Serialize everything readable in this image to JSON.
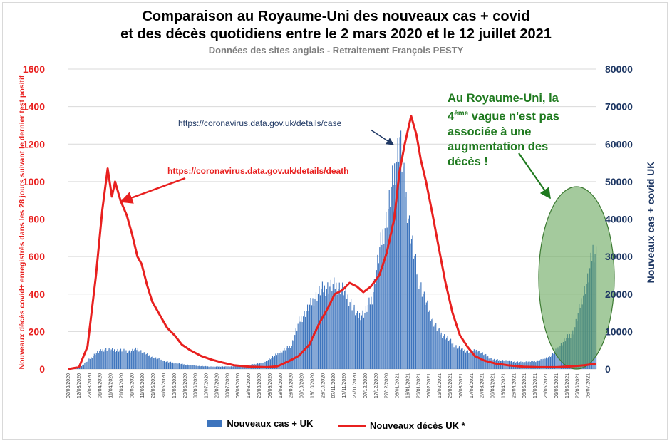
{
  "chart_data": {
    "type": "bar+line",
    "title_line1": "Comparaison au Royaume-Uni des nouveaux cas + covid",
    "title_line2": "et des décès quotidiens entre le 2 mars 2020 et le 12 juillet 2021",
    "subtitle": "Données des sites anglais - Retraitement François PESTY",
    "y_left_label": "Nouveaux décès covid+ enregistrés dans les 28 jours suivant le dernier test positif",
    "y_right_label": "Nouveaux cas + covid UK",
    "y_left_ticks": [
      "0",
      "200",
      "400",
      "600",
      "800",
      "1000",
      "1200",
      "1400",
      "1600"
    ],
    "y_right_ticks": [
      "0",
      "10000",
      "20000",
      "30000",
      "40000",
      "50000",
      "60000",
      "70000",
      "80000"
    ],
    "y_left_range": [
      0,
      1600
    ],
    "y_right_range": [
      0,
      80000
    ],
    "x_range": [
      "2020-03-02",
      "2021-07-12"
    ],
    "x_tick_labels": [
      "02/03/2020",
      "12/03/2020",
      "22/03/2020",
      "01/04/2020",
      "11/04/2020",
      "21/04/2020",
      "01/05/2020",
      "11/05/2020",
      "21/05/2020",
      "31/05/2020",
      "10/06/2020",
      "20/06/2020",
      "30/06/2020",
      "10/07/2020",
      "20/07/2020",
      "30/07/2020",
      "09/08/2020",
      "19/08/2020",
      "29/08/2020",
      "08/09/2020",
      "18/09/2020",
      "28/09/2020",
      "08/10/2020",
      "18/10/2020",
      "28/10/2020",
      "07/11/2020",
      "17/11/2020",
      "27/11/2020",
      "07/12/2020",
      "17/12/2020",
      "27/12/2020",
      "06/01/2021",
      "16/01/2021",
      "26/01/2021",
      "05/02/2021",
      "15/02/2021",
      "25/02/2021",
      "07/03/2021",
      "17/03/2021",
      "27/03/2021",
      "06/04/2021",
      "16/04/2021",
      "26/04/2021",
      "06/05/2021",
      "16/05/2021",
      "26/05/2021",
      "05/06/2021",
      "15/06/2021",
      "25/06/2021",
      "05/07/2021"
    ],
    "series": [
      {
        "name": "Nouveaux cas + UK",
        "kind": "bar",
        "axis": "right",
        "color": "#3d74bd",
        "points": [
          [
            "2020-03-02",
            40
          ],
          [
            "2020-03-12",
            300
          ],
          [
            "2020-03-20",
            2500
          ],
          [
            "2020-03-28",
            4800
          ],
          [
            "2020-04-05",
            5800
          ],
          [
            "2020-04-12",
            5600
          ],
          [
            "2020-04-20",
            5500
          ],
          [
            "2020-04-28",
            5200
          ],
          [
            "2020-05-06",
            5900
          ],
          [
            "2020-05-12",
            4600
          ],
          [
            "2020-05-20",
            3500
          ],
          [
            "2020-06-01",
            2200
          ],
          [
            "2020-06-15",
            1500
          ],
          [
            "2020-07-01",
            900
          ],
          [
            "2020-07-15",
            700
          ],
          [
            "2020-08-01",
            750
          ],
          [
            "2020-08-15",
            1000
          ],
          [
            "2020-09-01",
            1800
          ],
          [
            "2020-09-10",
            3500
          ],
          [
            "2020-09-20",
            5500
          ],
          [
            "2020-09-28",
            7000
          ],
          [
            "2020-10-05",
            14000
          ],
          [
            "2020-10-12",
            17000
          ],
          [
            "2020-10-18",
            20000
          ],
          [
            "2020-10-25",
            23000
          ],
          [
            "2020-11-01",
            24000
          ],
          [
            "2020-11-08",
            24500
          ],
          [
            "2020-11-15",
            23500
          ],
          [
            "2020-11-22",
            20000
          ],
          [
            "2020-11-29",
            15500
          ],
          [
            "2020-12-06",
            16500
          ],
          [
            "2020-12-13",
            21000
          ],
          [
            "2020-12-20",
            35000
          ],
          [
            "2020-12-27",
            45000
          ],
          [
            "2021-01-03",
            58000
          ],
          [
            "2021-01-08",
            68000
          ],
          [
            "2021-01-12",
            55000
          ],
          [
            "2021-01-18",
            40000
          ],
          [
            "2021-01-25",
            27000
          ],
          [
            "2021-02-01",
            20000
          ],
          [
            "2021-02-08",
            14000
          ],
          [
            "2021-02-15",
            10500
          ],
          [
            "2021-02-22",
            9000
          ],
          [
            "2021-03-01",
            6800
          ],
          [
            "2021-03-08",
            5700
          ],
          [
            "2021-03-15",
            5000
          ],
          [
            "2021-03-22",
            5500
          ],
          [
            "2021-03-29",
            4200
          ],
          [
            "2021-04-05",
            2800
          ],
          [
            "2021-04-12",
            2600
          ],
          [
            "2021-04-19",
            2400
          ],
          [
            "2021-04-26",
            2100
          ],
          [
            "2021-05-03",
            2000
          ],
          [
            "2021-05-10",
            2200
          ],
          [
            "2021-05-17",
            2300
          ],
          [
            "2021-05-24",
            3000
          ],
          [
            "2021-05-31",
            4000
          ],
          [
            "2021-06-07",
            6500
          ],
          [
            "2021-06-14",
            9000
          ],
          [
            "2021-06-21",
            11000
          ],
          [
            "2021-06-28",
            20000
          ],
          [
            "2021-07-05",
            27000
          ],
          [
            "2021-07-09",
            35000
          ],
          [
            "2021-07-12",
            34000
          ]
        ]
      },
      {
        "name": "Nouveaux décès UK *",
        "kind": "line",
        "axis": "left",
        "color": "#e8201f",
        "points": [
          [
            "2020-03-02",
            0
          ],
          [
            "2020-03-12",
            10
          ],
          [
            "2020-03-20",
            120
          ],
          [
            "2020-03-28",
            500
          ],
          [
            "2020-04-03",
            850
          ],
          [
            "2020-04-08",
            1070
          ],
          [
            "2020-04-12",
            920
          ],
          [
            "2020-04-15",
            1000
          ],
          [
            "2020-04-20",
            900
          ],
          [
            "2020-04-26",
            820
          ],
          [
            "2020-05-01",
            720
          ],
          [
            "2020-05-06",
            600
          ],
          [
            "2020-05-10",
            560
          ],
          [
            "2020-05-15",
            450
          ],
          [
            "2020-05-20",
            360
          ],
          [
            "2020-05-27",
            290
          ],
          [
            "2020-06-03",
            220
          ],
          [
            "2020-06-10",
            180
          ],
          [
            "2020-06-17",
            130
          ],
          [
            "2020-06-25",
            100
          ],
          [
            "2020-07-05",
            70
          ],
          [
            "2020-07-15",
            50
          ],
          [
            "2020-07-25",
            35
          ],
          [
            "2020-08-05",
            20
          ],
          [
            "2020-08-20",
            12
          ],
          [
            "2020-09-05",
            10
          ],
          [
            "2020-09-15",
            15
          ],
          [
            "2020-09-25",
            40
          ],
          [
            "2020-10-05",
            70
          ],
          [
            "2020-10-15",
            130
          ],
          [
            "2020-10-25",
            250
          ],
          [
            "2020-11-01",
            320
          ],
          [
            "2020-11-08",
            400
          ],
          [
            "2020-11-15",
            420
          ],
          [
            "2020-11-22",
            460
          ],
          [
            "2020-11-29",
            440
          ],
          [
            "2020-12-05",
            410
          ],
          [
            "2020-12-12",
            440
          ],
          [
            "2020-12-20",
            500
          ],
          [
            "2020-12-27",
            620
          ],
          [
            "2021-01-03",
            800
          ],
          [
            "2021-01-08",
            1050
          ],
          [
            "2021-01-13",
            1200
          ],
          [
            "2021-01-19",
            1350
          ],
          [
            "2021-01-24",
            1250
          ],
          [
            "2021-01-28",
            1120
          ],
          [
            "2021-02-02",
            1000
          ],
          [
            "2021-02-08",
            830
          ],
          [
            "2021-02-14",
            650
          ],
          [
            "2021-02-20",
            470
          ],
          [
            "2021-02-27",
            300
          ],
          [
            "2021-03-06",
            180
          ],
          [
            "2021-03-13",
            120
          ],
          [
            "2021-03-20",
            70
          ],
          [
            "2021-03-29",
            45
          ],
          [
            "2021-04-08",
            30
          ],
          [
            "2021-04-20",
            20
          ],
          [
            "2021-05-05",
            12
          ],
          [
            "2021-05-20",
            10
          ],
          [
            "2021-06-05",
            10
          ],
          [
            "2021-06-20",
            15
          ],
          [
            "2021-07-01",
            20
          ],
          [
            "2021-07-08",
            25
          ],
          [
            "2021-07-12",
            28
          ]
        ]
      }
    ],
    "annotations": [
      {
        "text": "https://coronavirus.data.gov.uk/details/case",
        "color": "#1f3864"
      },
      {
        "text": "https://coronavirus.data.gov.uk/details/death",
        "color": "#e8201f"
      }
    ],
    "highlight": {
      "shape": "ellipse",
      "color": "#4e9a4e",
      "from": "2021-05-15",
      "to": "2021-07-12"
    },
    "grid": true,
    "legend_position": "bottom"
  },
  "note": {
    "line1": "Au Royaume-Uni, la",
    "num": "4",
    "sup": "ème",
    "line2_rest": " vague n'est pas",
    "line3": "associée à une",
    "line4": "augmentation des",
    "line5": "décès !"
  },
  "legend": {
    "cases": "Nouveaux cas + UK",
    "deaths": "Nouveaux décès UK *"
  }
}
